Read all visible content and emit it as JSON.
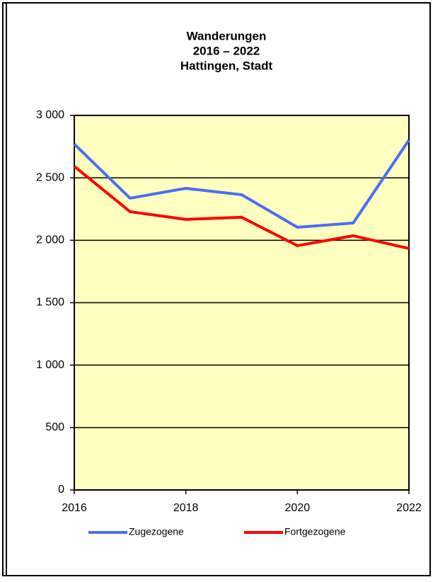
{
  "chart_data": {
    "type": "line",
    "title": [
      "Wanderungen",
      "2016 – 2022",
      "Hattingen, Stadt"
    ],
    "x": [
      2016,
      2017,
      2018,
      2019,
      2020,
      2021,
      2022
    ],
    "series": [
      {
        "name": "Zugezogene",
        "color": "#4a6ff0",
        "values": [
          2770,
          2337,
          2416,
          2365,
          2104,
          2138,
          2802
        ]
      },
      {
        "name": "Fortgezogene",
        "color": "#ff0000",
        "values": [
          2592,
          2229,
          2167,
          2184,
          1957,
          2036,
          1934
        ]
      }
    ],
    "xlim": [
      2016,
      2022
    ],
    "xticks": [
      2016,
      2018,
      2020,
      2022
    ],
    "ylim": [
      0,
      3000
    ],
    "yticks": [
      0,
      500,
      {
        "value": 1000,
        "label": "1 000"
      },
      {
        "value": 1500,
        "label": "1 500"
      },
      {
        "value": 2000,
        "label": "2 000"
      },
      {
        "value": 2500,
        "label": "2 500"
      },
      {
        "value": 3000,
        "label": "3 000"
      }
    ],
    "grid": true,
    "legend": "bottom",
    "background": "#ffffc0"
  }
}
